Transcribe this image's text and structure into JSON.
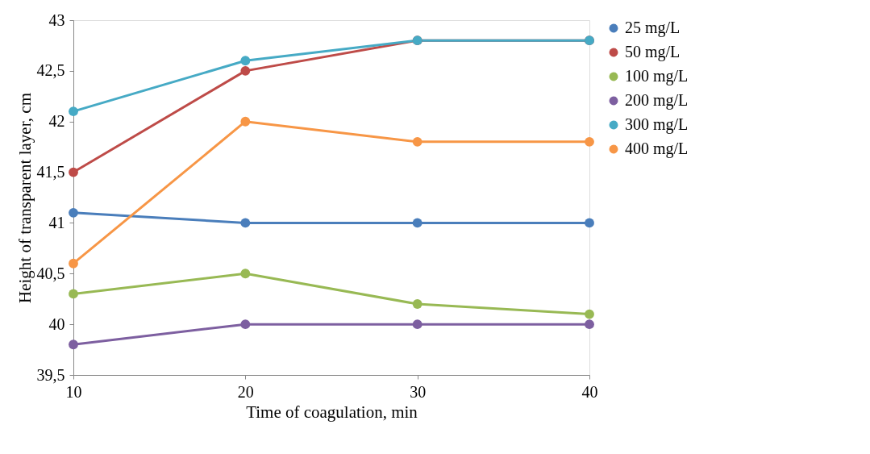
{
  "chart_data": {
    "type": "line",
    "xlabel": "Time of coagulation, min",
    "ylabel": "Height of transparent layer, cm",
    "x": [
      10,
      20,
      30,
      40
    ],
    "xlim": [
      10,
      40
    ],
    "xticks": [
      10,
      20,
      30,
      40
    ],
    "ylim": [
      39.5,
      43
    ],
    "yticks": [
      {
        "value": 39.5,
        "label": "39,5"
      },
      40,
      {
        "value": 40.5,
        "label": "40,5"
      },
      41,
      {
        "value": 41.5,
        "label": "41,5"
      },
      42,
      {
        "value": 42.5,
        "label": "42,5"
      },
      43
    ],
    "series": [
      {
        "name": "25 mg/L",
        "color": "#4a7ebb",
        "values": [
          41.1,
          41.0,
          41.0,
          41.0
        ]
      },
      {
        "name": "50 mg/L",
        "color": "#be4b48",
        "values": [
          41.5,
          42.5,
          42.8,
          42.8
        ]
      },
      {
        "name": "100 mg/L",
        "color": "#98b954",
        "values": [
          40.3,
          40.5,
          40.2,
          40.1
        ]
      },
      {
        "name": "200 mg/L",
        "color": "#7d5fa0",
        "values": [
          39.8,
          40.0,
          40.0,
          40.0
        ]
      },
      {
        "name": "300 mg/L",
        "color": "#46aac5",
        "values": [
          42.1,
          42.6,
          42.8,
          42.8
        ]
      },
      {
        "name": "400 mg/L",
        "color": "#f79646",
        "values": [
          40.6,
          42.0,
          41.8,
          41.8
        ]
      }
    ],
    "legend": "right",
    "marker": "circle",
    "line_style": "solid",
    "grid": false
  }
}
